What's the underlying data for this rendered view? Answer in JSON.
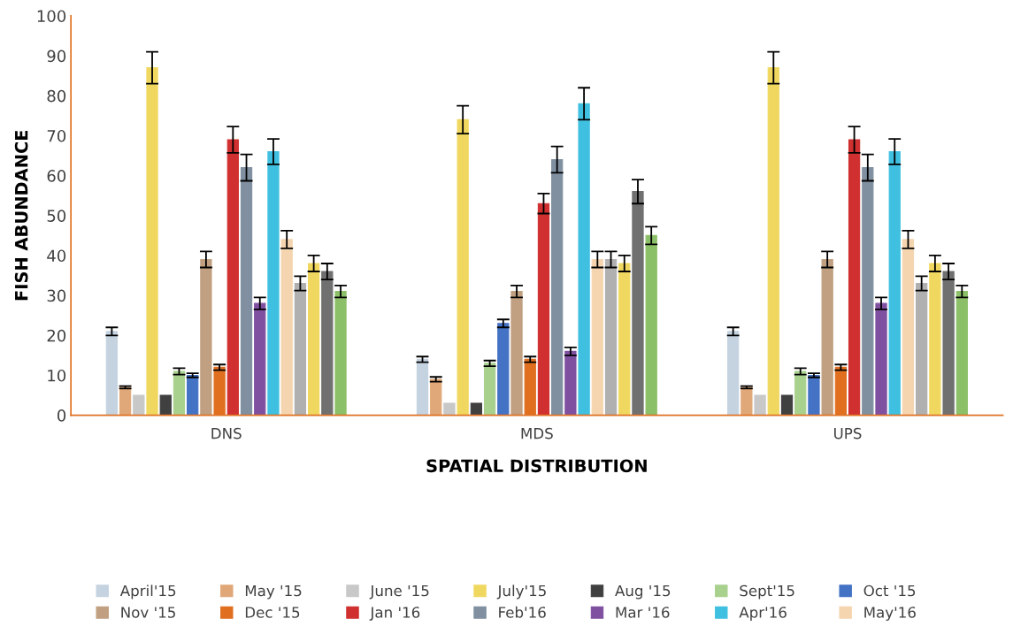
{
  "chart_data": {
    "type": "bar",
    "xlabel": "SPATIAL DISTRIBUTION",
    "ylabel": "FISH ABUNDANCE",
    "categories": [
      "DNS",
      "MDS",
      "UPS"
    ],
    "ylim": [
      0,
      100
    ],
    "yticks": [
      0,
      10,
      20,
      30,
      40,
      50,
      60,
      70,
      80,
      90,
      100
    ],
    "grid": false,
    "legend": "bottom",
    "series": [
      {
        "name": "April'15",
        "color": "#c5d3e0",
        "values": [
          21,
          14,
          21
        ],
        "errors": [
          1,
          0.7,
          1
        ]
      },
      {
        "name": "May '15",
        "color": "#e0a878",
        "values": [
          7,
          9,
          7
        ],
        "errors": [
          0.3,
          0.6,
          0.3
        ]
      },
      {
        "name": "June '15",
        "color": "#c8c8c8",
        "values": [
          5,
          3,
          5
        ],
        "errors": [
          null,
          null,
          null
        ]
      },
      {
        "name": "July'15",
        "color": "#f0d860",
        "values": [
          87,
          74,
          87
        ],
        "errors": [
          4,
          3.5,
          4
        ]
      },
      {
        "name": "Aug '15",
        "color": "#404040",
        "values": [
          5,
          3,
          5
        ],
        "errors": [
          null,
          null,
          null
        ]
      },
      {
        "name": "Sept'15",
        "color": "#a9d18e",
        "values": [
          11,
          13,
          11
        ],
        "errors": [
          0.8,
          0.7,
          0.8
        ]
      },
      {
        "name": "Oct '15",
        "color": "#4472c4",
        "values": [
          10,
          23,
          10
        ],
        "errors": [
          0.5,
          1,
          0.5
        ]
      },
      {
        "name": "Nov '15",
        "color": "#c0a080",
        "values": [
          39,
          31,
          39
        ],
        "errors": [
          2,
          1.5,
          2
        ]
      },
      {
        "name": "Dec '15",
        "color": "#e07020",
        "values": [
          12,
          14,
          12
        ],
        "errors": [
          0.7,
          0.7,
          0.7
        ]
      },
      {
        "name": "Jan '16",
        "color": "#d03030",
        "values": [
          69,
          53,
          69
        ],
        "errors": [
          3.3,
          2.5,
          3.3
        ]
      },
      {
        "name": "Feb'16",
        "color": "#8090a0",
        "values": [
          62,
          64,
          62
        ],
        "errors": [
          3.3,
          3.3,
          3.3
        ]
      },
      {
        "name": "Mar '16",
        "color": "#8050a0",
        "values": [
          28,
          16,
          28
        ],
        "errors": [
          1.5,
          1,
          1.5
        ]
      },
      {
        "name": "Apr'16",
        "color": "#40c0e0",
        "values": [
          66,
          78,
          66
        ],
        "errors": [
          3.2,
          4,
          3.2
        ]
      },
      {
        "name": "May'16",
        "color": "#f5d5b0",
        "values": [
          44,
          39,
          44
        ],
        "errors": [
          2.2,
          2,
          2.2
        ]
      },
      {
        "color": "#b0b0b0",
        "values": [
          33,
          39,
          33
        ],
        "errors": [
          1.8,
          2,
          1.8
        ]
      },
      {
        "color": "#f0d860",
        "values": [
          38,
          38,
          38
        ],
        "errors": [
          2,
          2,
          2
        ]
      },
      {
        "color": "#707070",
        "values": [
          36,
          56,
          36
        ],
        "errors": [
          2,
          3,
          2
        ]
      },
      {
        "color": "#8cc068",
        "values": [
          31,
          45,
          31
        ],
        "errors": [
          1.5,
          2.2,
          1.5
        ]
      }
    ]
  }
}
